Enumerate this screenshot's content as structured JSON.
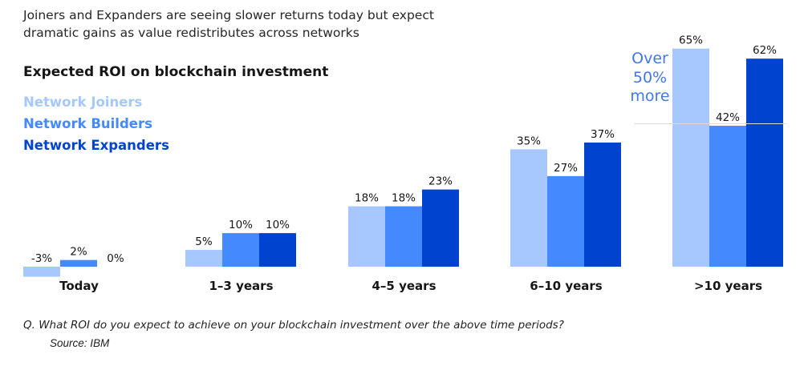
{
  "subtitle": "Joiners and Expanders are seeing slower returns today but expect dramatic gains as value redistributes across networks",
  "question": "Q. What ROI do you expect to achieve on your blockchain investment over the above time periods?",
  "source": "Source: IBM",
  "callout": {
    "lines": [
      "Over",
      "50%",
      "more"
    ],
    "color": "#4178e8"
  },
  "chart_data": {
    "type": "bar",
    "title": "Expected ROI on blockchain investment",
    "categories": [
      "Today",
      "1–3 years",
      "4–5 years",
      "6–10  years",
      ">10 years"
    ],
    "series": [
      {
        "name": "Network Joiners",
        "color": "#a6c8ff",
        "values": [
          -3,
          5,
          18,
          35,
          65
        ],
        "labels": [
          "-3%",
          "5%",
          "18%",
          "35%",
          "65%"
        ]
      },
      {
        "name": "Network Builders",
        "color": "#4589ff",
        "values": [
          2,
          10,
          18,
          27,
          42
        ],
        "labels": [
          "2%",
          "10%",
          "18%",
          "27%",
          "42%"
        ]
      },
      {
        "name": "Network Expanders",
        "color": "#0043ce",
        "values": [
          0,
          10,
          23,
          37,
          62
        ],
        "labels": [
          "0%",
          "10%",
          "23%",
          "37%",
          "62%"
        ]
      }
    ],
    "ylim": [
      -3,
      65
    ],
    "grid": false,
    "legend_position": "top-left",
    "xlabel": "",
    "ylabel": ""
  }
}
